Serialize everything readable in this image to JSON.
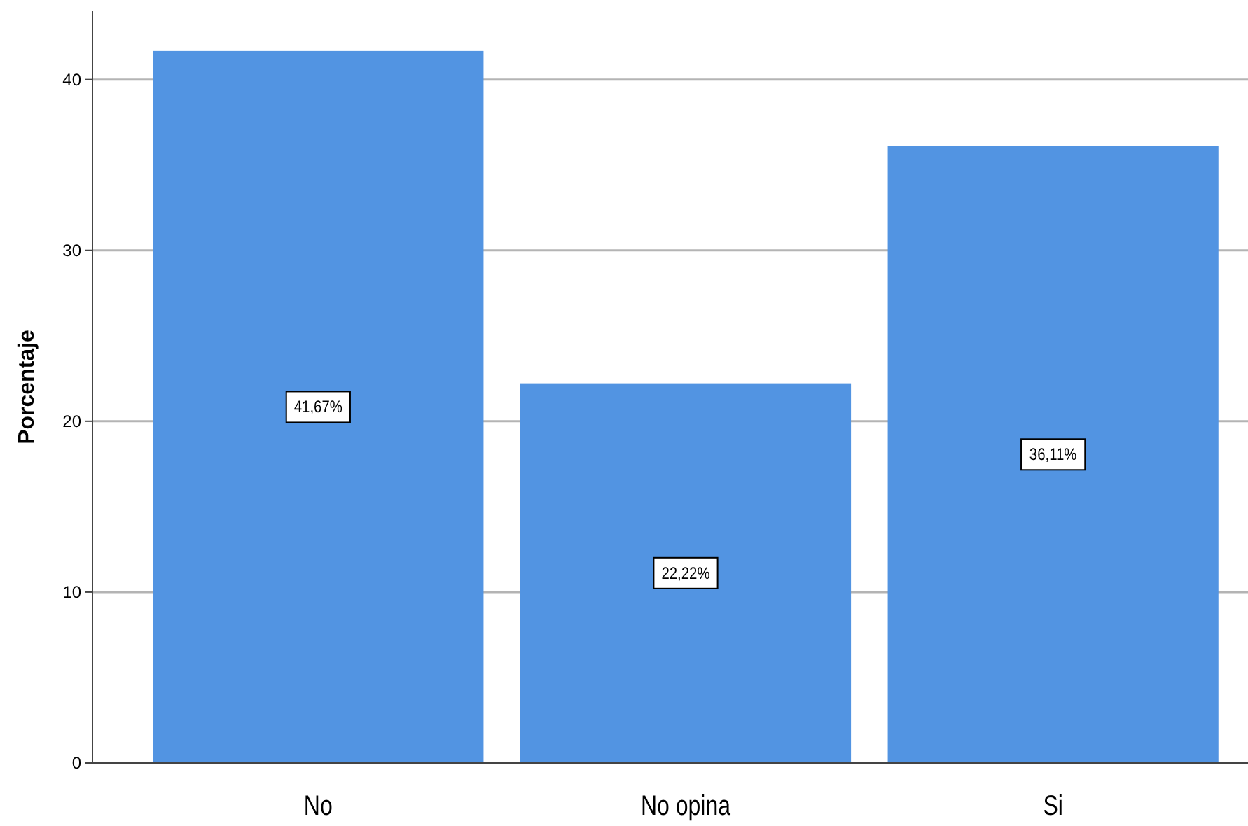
{
  "chart_data": {
    "type": "bar",
    "ylabel": "Porcentaje",
    "categories": [
      "No",
      "No opina",
      "Si"
    ],
    "values": [
      41.67,
      22.22,
      36.11
    ],
    "value_labels": [
      "41,67%",
      "22,22%",
      "36,11%"
    ],
    "color": "#5294e2",
    "ylim": [
      0,
      44
    ],
    "yticks": [
      0,
      10,
      20,
      30,
      40
    ],
    "grid": "y"
  }
}
